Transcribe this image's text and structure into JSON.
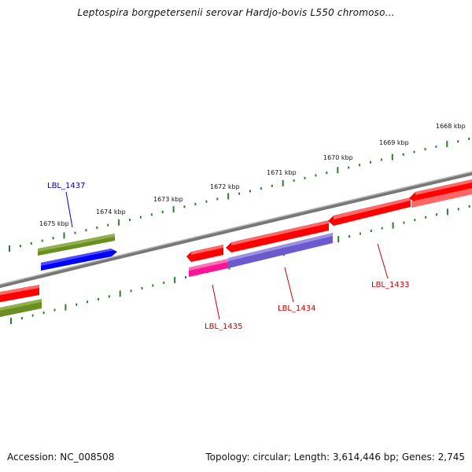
{
  "header": {
    "title": "Leptospira borgpetersenii serovar Hardjo-bovis L550 chromoso..."
  },
  "footer": {
    "accession": "Accession: NC_008508",
    "summary": "Topology: circular; Length: 3,614,446 bp; Genes: 2,745"
  },
  "map": {
    "kbp_labels": [
      "1668 kbp",
      "1669 kbp",
      "1670 kbp",
      "1671 kbp",
      "1672 kbp",
      "1673 kbp",
      "1674 kbp",
      "1675 kbp"
    ],
    "gene_labels": [
      {
        "text": "LBL_1437",
        "color": "#0000cc"
      },
      {
        "text": "LBL_1435",
        "color": "#cc0000"
      },
      {
        "text": "LBL_1434",
        "color": "#cc0000"
      },
      {
        "text": "LBL_1433",
        "color": "#cc0000"
      }
    ],
    "colors": {
      "backbone": "#808080",
      "ticks": "#2e7d32",
      "cds_forward": "#ff0000",
      "cds_reverse": "#ff0000",
      "olive": "#6b8e23",
      "blue": "#0000ff",
      "magenta": "#ff1493",
      "purple": "#6a5acd"
    }
  }
}
